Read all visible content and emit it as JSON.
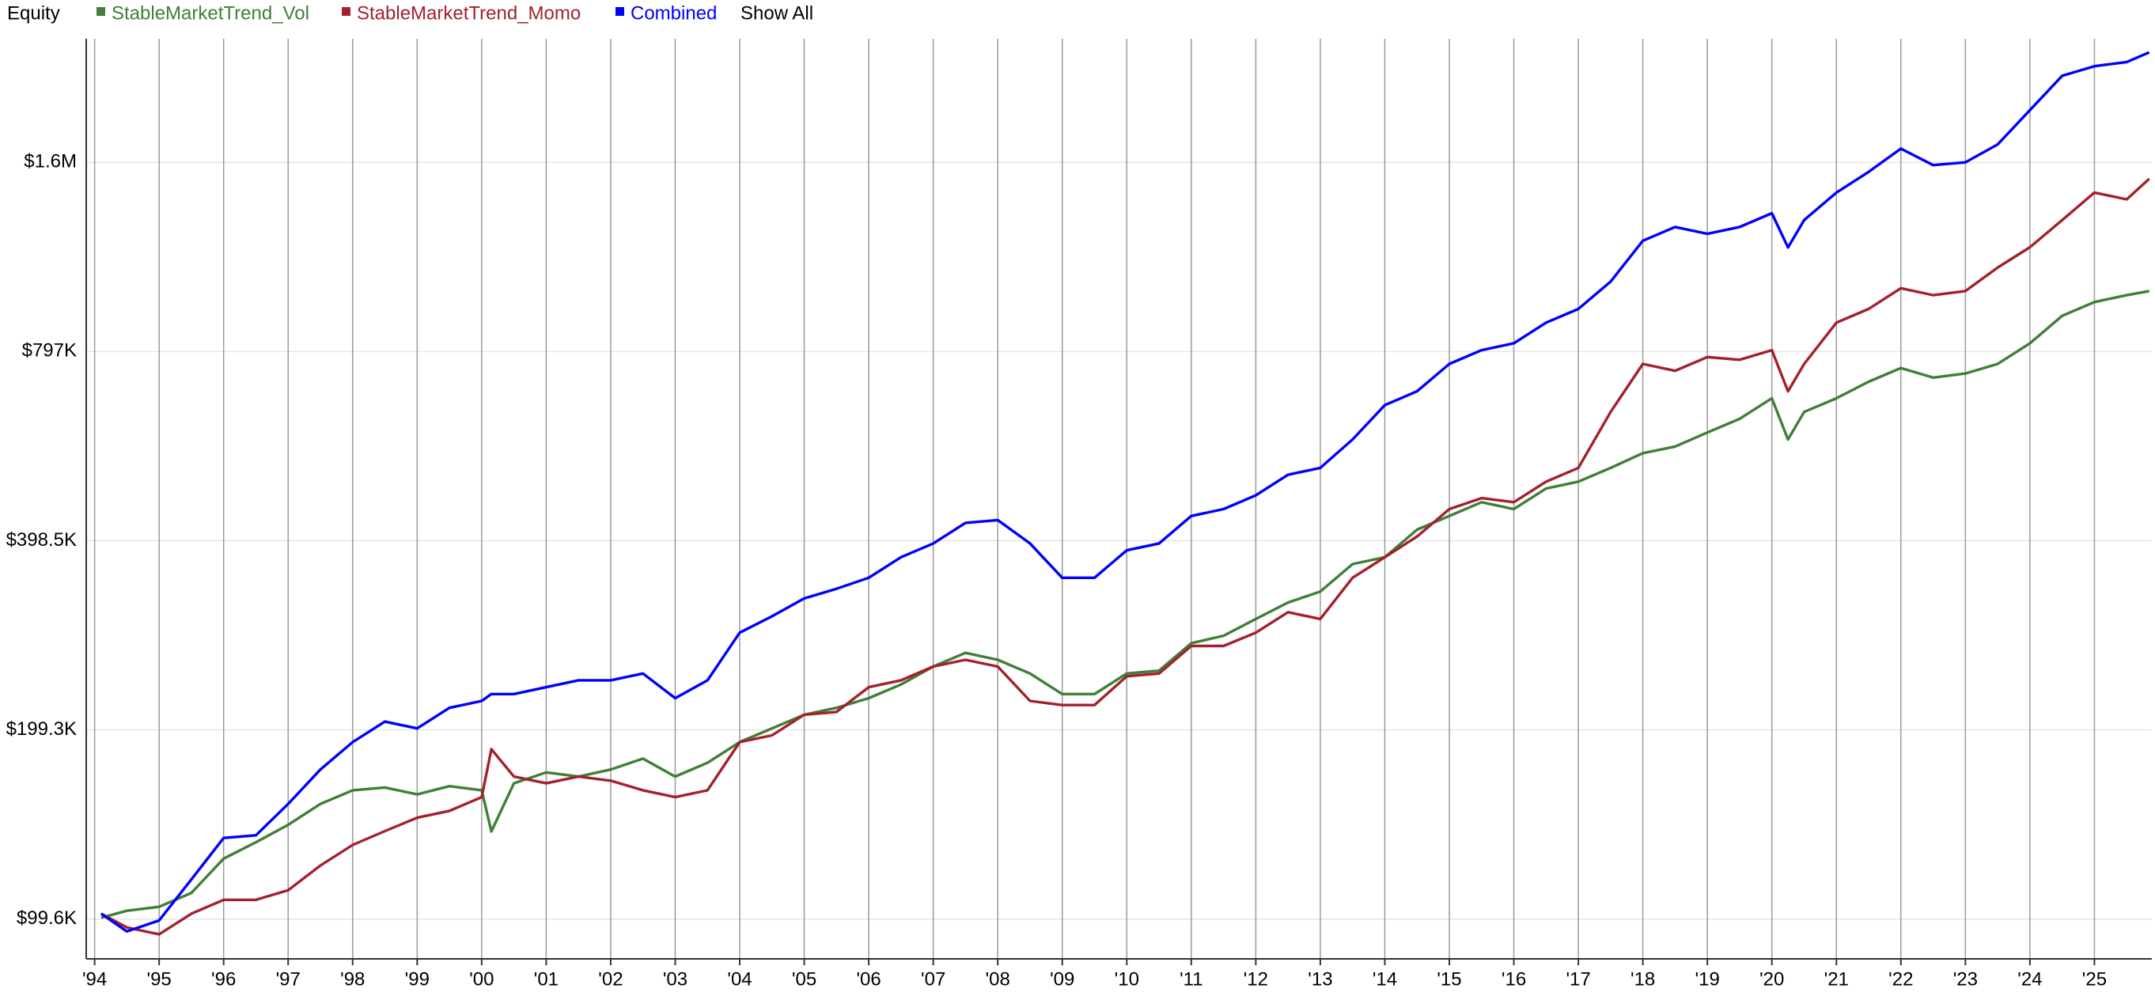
{
  "chart_data": {
    "type": "line",
    "title": "Equity",
    "show_all_label": "Show All",
    "log_scale": true,
    "grid": true,
    "x": [
      1994.1,
      1994.5,
      1995.0,
      1995.5,
      1996.0,
      1996.5,
      1997.0,
      1997.5,
      1998.0,
      1998.5,
      1999.0,
      1999.5,
      2000.0,
      2000.15,
      2000.5,
      2001.0,
      2001.5,
      2002.0,
      2002.5,
      2003.0,
      2003.5,
      2004.0,
      2004.5,
      2005.0,
      2005.5,
      2006.0,
      2006.5,
      2007.0,
      2007.5,
      2008.0,
      2008.5,
      2009.0,
      2009.5,
      2010.0,
      2010.5,
      2011.0,
      2011.5,
      2012.0,
      2012.5,
      2013.0,
      2013.5,
      2014.0,
      2014.5,
      2015.0,
      2015.5,
      2016.0,
      2016.5,
      2017.0,
      2017.5,
      2018.0,
      2018.5,
      2019.0,
      2019.5,
      2020.0,
      2020.25,
      2020.5,
      2021.0,
      2021.5,
      2022.0,
      2022.5,
      2023.0,
      2023.5,
      2024.0,
      2024.5,
      2025.0,
      2025.5,
      2025.85
    ],
    "series": [
      {
        "name": "StableMarketTrend_Vol",
        "color": "#3f7f37",
        "values": [
          100100,
          102700,
          104200,
          109600,
          124300,
          132000,
          140700,
          151900,
          159700,
          161300,
          157300,
          162100,
          159700,
          137300,
          163800,
          170500,
          167900,
          172300,
          179300,
          167900,
          176600,
          190500,
          200300,
          210600,
          216000,
          223800,
          235300,
          251300,
          264200,
          257600,
          245000,
          227200,
          227200,
          245000,
          247500,
          273700,
          281300,
          299100,
          317700,
          330800,
          365800,
          375100,
          414900,
          436300,
          458800,
          447400,
          482500,
          494800,
          520300,
          549200,
          562700,
          592300,
          622800,
          671600,
          577400,
          638700,
          671600,
          713500,
          750300,
          724300,
          735400,
          761700,
          821500,
          908400,
          955400,
          979800,
          994600
        ]
      },
      {
        "name": "StableMarketTrend_Momo",
        "color": "#a3212c",
        "values": [
          101600,
          96600,
          94200,
          101600,
          106900,
          106900,
          110700,
          121200,
          130700,
          137500,
          144400,
          148100,
          155700,
          185700,
          167900,
          163800,
          167900,
          165400,
          159700,
          155700,
          159700,
          190500,
          195300,
          210600,
          212800,
          233000,
          238900,
          251300,
          257600,
          251300,
          221500,
          218200,
          218200,
          242500,
          245000,
          271000,
          271000,
          284500,
          306700,
          299100,
          347900,
          375100,
          404600,
          447400,
          465800,
          458800,
          494800,
          520300,
          638700,
          761700,
          742700,
          781100,
          773200,
          801000,
          688900,
          761700,
          885900,
          931600,
          1005000,
          979800,
          994600,
          1084000,
          1168000,
          1290000,
          1427000,
          1392000,
          1501000
        ]
      },
      {
        "name": "Combined",
        "color": "#0000ff",
        "values": [
          101600,
          95200,
          99100,
          115200,
          134100,
          135400,
          151900,
          172300,
          190500,
          205400,
          200300,
          216000,
          221500,
          227200,
          227200,
          233000,
          238900,
          238900,
          245000,
          223800,
          238900,
          284500,
          302100,
          322500,
          334100,
          347900,
          375100,
          394500,
          425400,
          429700,
          394500,
          347900,
          347900,
          384700,
          394500,
          436300,
          447400,
          470500,
          507400,
          520300,
          577400,
          654900,
          688900,
          761700,
          801000,
          821500,
          885900,
          931600,
          1030000,
          1196000,
          1258000,
          1227000,
          1258000,
          1323000,
          1167000,
          1290000,
          1427000,
          1539000,
          1676000,
          1578000,
          1594000,
          1702000,
          1930000,
          2189000,
          2267000,
          2302000,
          2385000
        ]
      }
    ],
    "xlim": [
      1993.87,
      2025.89
    ],
    "xticks": [
      {
        "value": 1994,
        "label": "'94"
      },
      {
        "value": 1995,
        "label": "'95"
      },
      {
        "value": 1996,
        "label": "'96"
      },
      {
        "value": 1997,
        "label": "'97"
      },
      {
        "value": 1998,
        "label": "'98"
      },
      {
        "value": 1999,
        "label": "'99"
      },
      {
        "value": 2000,
        "label": "'00"
      },
      {
        "value": 2001,
        "label": "'01"
      },
      {
        "value": 2002,
        "label": "'02"
      },
      {
        "value": 2003,
        "label": "'03"
      },
      {
        "value": 2004,
        "label": "'04"
      },
      {
        "value": 2005,
        "label": "'05"
      },
      {
        "value": 2006,
        "label": "'06"
      },
      {
        "value": 2007,
        "label": "'07"
      },
      {
        "value": 2008,
        "label": "'08"
      },
      {
        "value": 2009,
        "label": "'09"
      },
      {
        "value": 2010,
        "label": "'10"
      },
      {
        "value": 2011,
        "label": "'11"
      },
      {
        "value": 2012,
        "label": "'12"
      },
      {
        "value": 2013,
        "label": "'13"
      },
      {
        "value": 2014,
        "label": "'14"
      },
      {
        "value": 2015,
        "label": "'15"
      },
      {
        "value": 2016,
        "label": "'16"
      },
      {
        "value": 2017,
        "label": "'17"
      },
      {
        "value": 2018,
        "label": "'18"
      },
      {
        "value": 2019,
        "label": "'19"
      },
      {
        "value": 2020,
        "label": "'20"
      },
      {
        "value": 2021,
        "label": "'21"
      },
      {
        "value": 2022,
        "label": "'22"
      },
      {
        "value": 2023,
        "label": "'23"
      },
      {
        "value": 2024,
        "label": "'24"
      },
      {
        "value": 2025,
        "label": "'25"
      }
    ],
    "ylim": [
      86100,
      2507000
    ],
    "yticks": [
      {
        "value": 99600,
        "label": "$99.6K"
      },
      {
        "value": 199300,
        "label": "$199.3K"
      },
      {
        "value": 398500,
        "label": "$398.5K"
      },
      {
        "value": 797000,
        "label": "$797K"
      },
      {
        "value": 1594000,
        "label": "$1.6M"
      }
    ]
  }
}
